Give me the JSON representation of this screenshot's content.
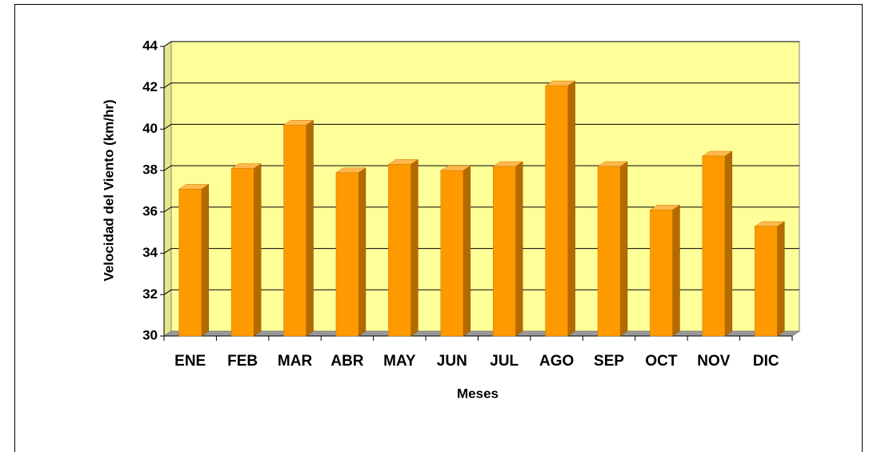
{
  "chart_data": {
    "type": "bar3d",
    "x_label": "Meses",
    "y_label": "Velocidad del Viento (km/hr)",
    "categories": [
      "ENE",
      "FEB",
      "MAR",
      "ABR",
      "MAY",
      "JUN",
      "JUL",
      "AGO",
      "SEP",
      "OCT",
      "NOV",
      "DIC"
    ],
    "values": [
      37.1,
      38.1,
      40.2,
      37.9,
      38.3,
      38.0,
      38.2,
      42.1,
      38.2,
      36.1,
      38.7,
      35.3
    ],
    "color": "#ff9900",
    "ylim": [
      30,
      44
    ],
    "yticks": [
      30,
      32,
      34,
      36,
      38,
      40,
      42,
      44
    ],
    "grid": true
  }
}
